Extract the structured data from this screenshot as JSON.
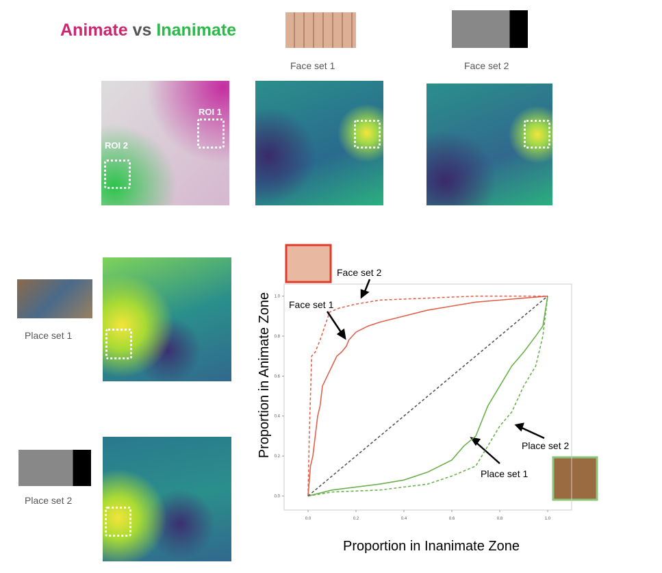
{
  "figure": {
    "title_animate": "Animate",
    "title_vs": "vs",
    "title_inanimate": "Inanimate",
    "face_set_1_label": "Face set 1",
    "face_set_2_label": "Face set 2",
    "place_set_1_label": "Place set 1",
    "place_set_2_label": "Place set 2",
    "roi_1": "ROI 1",
    "roi_2": "ROI 2"
  },
  "chart_data": {
    "type": "line",
    "xlabel": "Proportion in Inanimate Zone",
    "ylabel": "Proportion in Animate Zone",
    "xlim": [
      -0.1,
      1.1
    ],
    "ylim": [
      -0.07,
      1.06
    ],
    "xticks": [
      {
        "value": 0,
        "label": "0.0"
      },
      0.2,
      0.4,
      0.6,
      0.8,
      {
        "value": 1,
        "label": "1.0"
      }
    ],
    "yticks": [
      {
        "value": 0,
        "label": "0.0"
      },
      0.2,
      0.4,
      0.6,
      0.8,
      {
        "value": 1,
        "label": "1.0"
      }
    ],
    "series": [
      {
        "name": "Face set 1",
        "color": "#e0604a",
        "dash": false,
        "x": [
          0,
          0.01,
          0.02,
          0.03,
          0.04,
          0.05,
          0.06,
          0.08,
          0.1,
          0.12,
          0.14,
          0.16,
          0.17,
          0.2,
          0.25,
          0.3,
          0.4,
          0.5,
          0.6,
          0.7,
          0.8,
          0.9,
          1
        ],
        "values": [
          0,
          0.15,
          0.2,
          0.3,
          0.4,
          0.45,
          0.55,
          0.6,
          0.65,
          0.7,
          0.72,
          0.75,
          0.78,
          0.82,
          0.85,
          0.87,
          0.9,
          0.93,
          0.95,
          0.97,
          0.98,
          0.99,
          1
        ]
      },
      {
        "name": "Face set 2",
        "color": "#e0604a",
        "dash": true,
        "x": [
          0,
          0.005,
          0.01,
          0.015,
          0.03,
          0.05,
          0.07,
          0.09,
          0.13,
          0.2,
          0.3,
          0.5,
          0.7,
          1
        ],
        "values": [
          0,
          0.3,
          0.5,
          0.7,
          0.72,
          0.78,
          0.85,
          0.92,
          0.94,
          0.96,
          0.98,
          0.99,
          1,
          1
        ]
      },
      {
        "name": "Place set 1",
        "color": "#6ab04c",
        "dash": false,
        "x": [
          0,
          0.1,
          0.3,
          0.4,
          0.5,
          0.6,
          0.65,
          0.7,
          0.75,
          0.8,
          0.85,
          0.9,
          0.95,
          0.98,
          1
        ],
        "values": [
          0,
          0.03,
          0.06,
          0.08,
          0.12,
          0.18,
          0.25,
          0.3,
          0.45,
          0.55,
          0.65,
          0.72,
          0.8,
          0.85,
          1
        ]
      },
      {
        "name": "Place set 2",
        "color": "#6ab04c",
        "dash": true,
        "x": [
          0,
          0.1,
          0.3,
          0.5,
          0.6,
          0.7,
          0.75,
          0.8,
          0.85,
          0.9,
          0.95,
          0.98,
          1
        ],
        "values": [
          0,
          0.02,
          0.03,
          0.06,
          0.1,
          0.15,
          0.25,
          0.35,
          0.42,
          0.55,
          0.65,
          0.8,
          1
        ]
      },
      {
        "color": "#555555",
        "dash": true,
        "x": [
          0,
          1
        ],
        "values": [
          0,
          1
        ]
      }
    ]
  }
}
